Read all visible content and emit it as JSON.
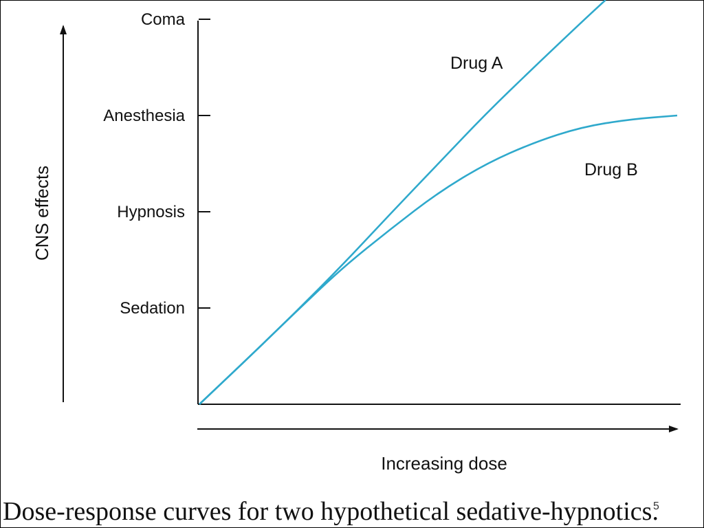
{
  "caption": "Dose-response curves for two hypothetical sedative-hypnotics.",
  "slide_number": "5",
  "colors": {
    "curve": "#2fa9cc",
    "axis": "#111111"
  },
  "chart_data": {
    "type": "line",
    "title": "",
    "xlabel": "Increasing dose",
    "ylabel": "CNS effects",
    "xlim": [
      0,
      10
    ],
    "ylim": [
      0,
      4
    ],
    "y_ticks": [
      {
        "value": 1,
        "label": "Sedation"
      },
      {
        "value": 2,
        "label": "Hypnosis"
      },
      {
        "value": 3,
        "label": "Anesthesia"
      },
      {
        "value": 4,
        "label": "Coma"
      }
    ],
    "x_ticks": [],
    "grid": false,
    "legend": "none",
    "series": [
      {
        "name": "Drug A",
        "x": [
          0,
          1,
          2,
          3,
          4,
          5,
          6,
          7,
          8,
          8.5
        ],
        "y": [
          0,
          0.47,
          0.95,
          1.45,
          1.98,
          2.5,
          3.02,
          3.5,
          3.97,
          4.2
        ]
      },
      {
        "name": "Drug B",
        "x": [
          0,
          1,
          2,
          3,
          4,
          5,
          6,
          7,
          8,
          9,
          10
        ],
        "y": [
          0,
          0.47,
          0.95,
          1.42,
          1.82,
          2.2,
          2.5,
          2.72,
          2.88,
          2.96,
          3.0
        ]
      }
    ]
  }
}
